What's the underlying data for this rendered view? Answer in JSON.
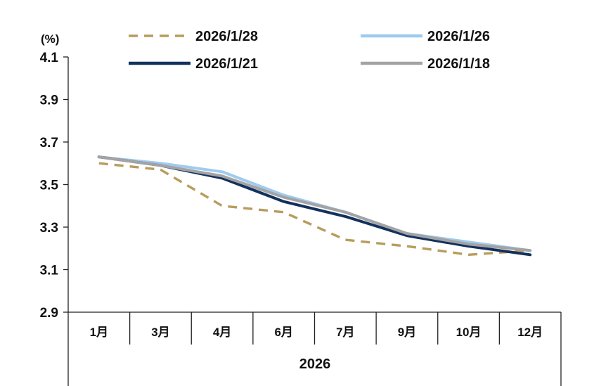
{
  "chart_data": {
    "type": "line",
    "unit": "(%)",
    "categories": [
      "1月",
      "3月",
      "4月",
      "6月",
      "7月",
      "9月",
      "10月",
      "12月"
    ],
    "category_group": "2026",
    "ylim": [
      2.9,
      4.1
    ],
    "yticks": [
      "4.1",
      "3.9",
      "3.7",
      "3.5",
      "3.3",
      "3.1",
      "2.9"
    ],
    "grid": false,
    "legend_position": "top",
    "series": [
      {
        "name": "2026/1/28",
        "color": "#b89c5c",
        "style": "dashed",
        "values": [
          3.6,
          3.57,
          3.4,
          3.37,
          3.24,
          3.21,
          3.17,
          3.19
        ]
      },
      {
        "name": "2026/1/26",
        "color": "#9fcbee",
        "style": "solid",
        "values": [
          3.63,
          3.6,
          3.56,
          3.45,
          3.37,
          3.27,
          3.23,
          3.19
        ]
      },
      {
        "name": "2026/1/21",
        "color": "#13315e",
        "style": "solid",
        "values": [
          3.63,
          3.59,
          3.53,
          3.42,
          3.35,
          3.26,
          3.21,
          3.17
        ]
      },
      {
        "name": "2026/1/18",
        "color": "#a3a3a3",
        "style": "solid",
        "values": [
          3.63,
          3.59,
          3.54,
          3.44,
          3.37,
          3.27,
          3.22,
          3.19
        ]
      }
    ]
  }
}
